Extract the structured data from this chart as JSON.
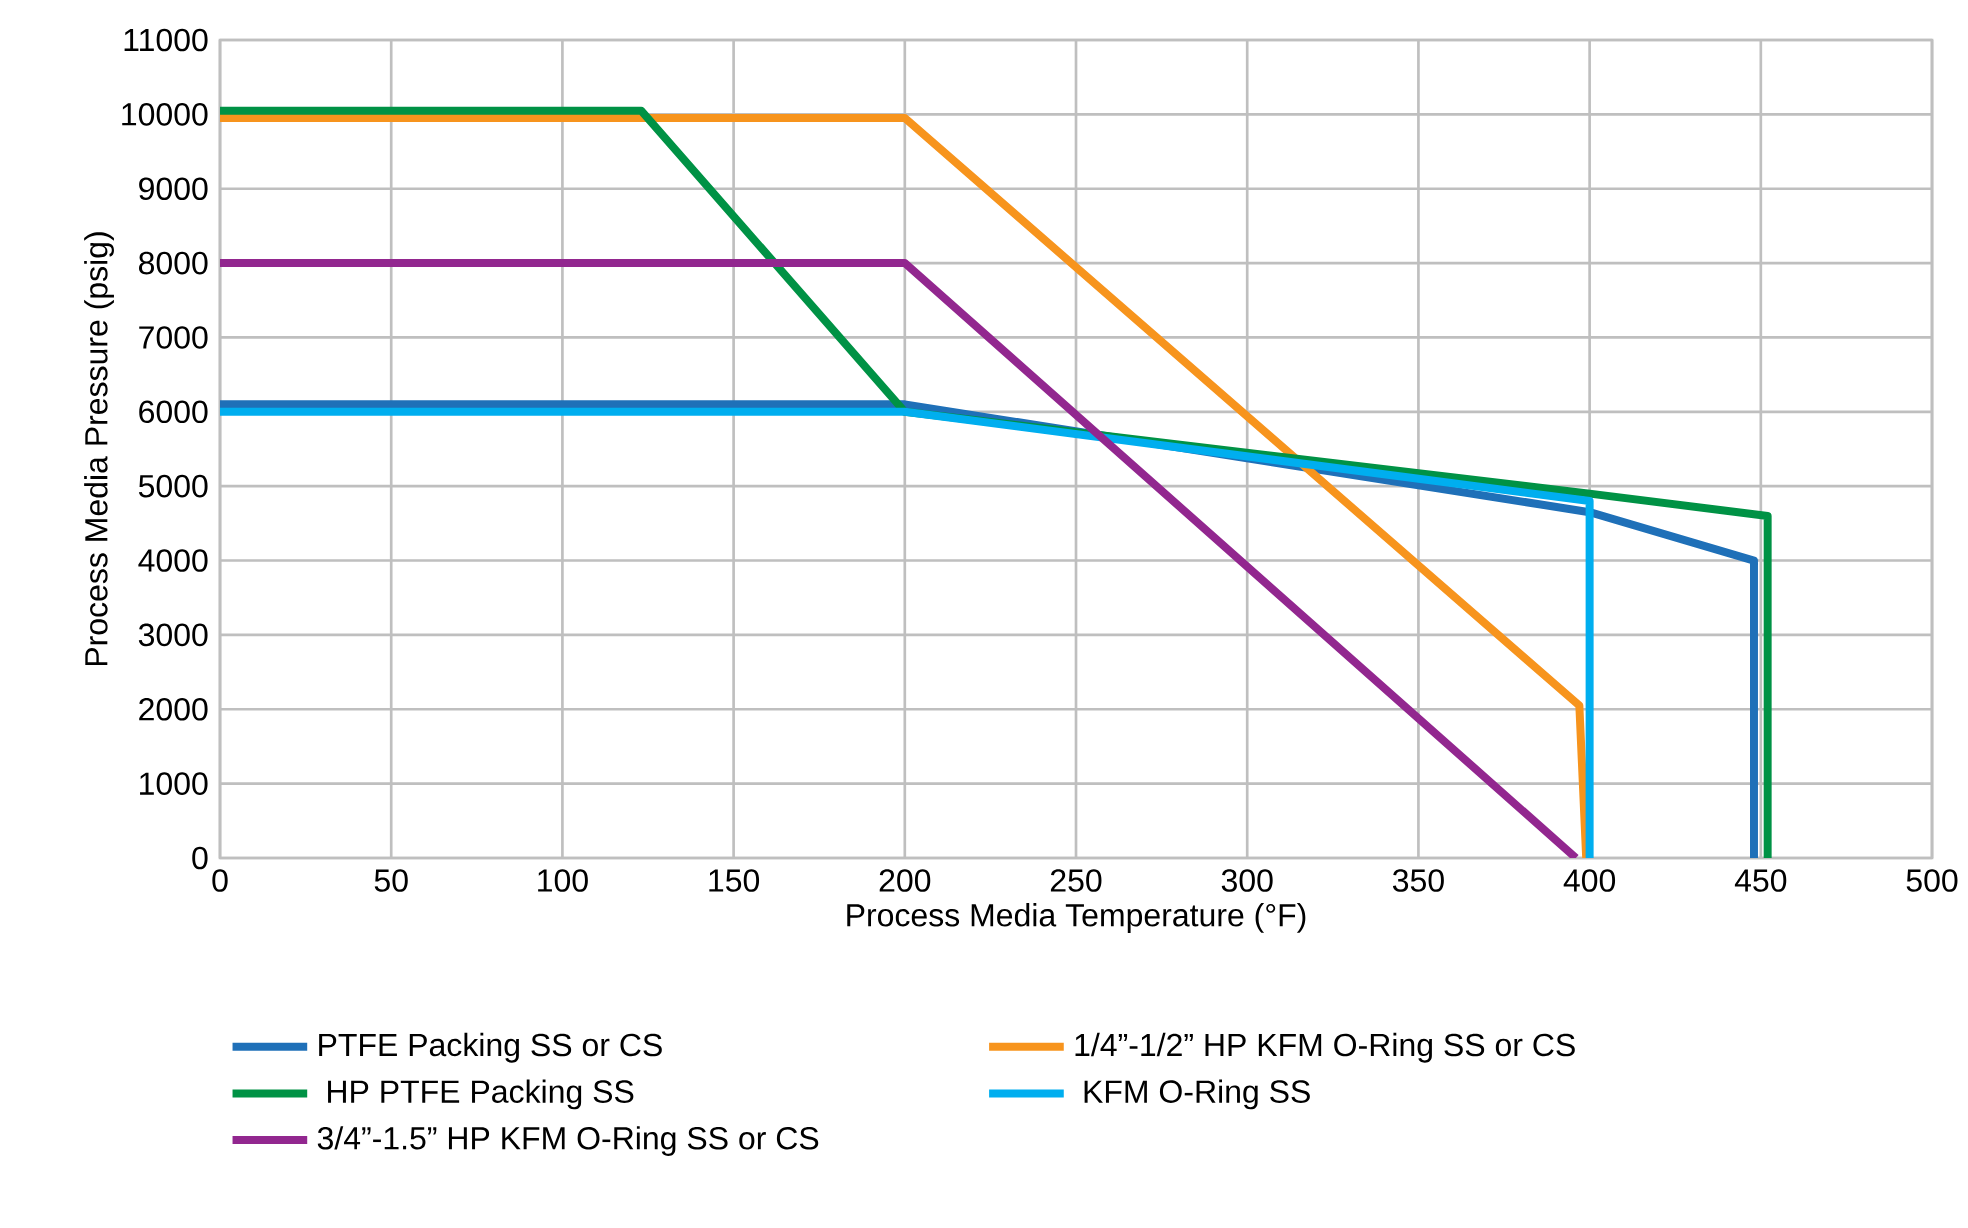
{
  "chart_data": {
    "type": "line",
    "xlabel": "Process Media Temperature (°F)",
    "ylabel": "Process Media Pressure (psig)",
    "xlim": [
      0,
      500
    ],
    "xticks": [
      0,
      50,
      100,
      150,
      200,
      250,
      300,
      350,
      400,
      450,
      500
    ],
    "ylim": [
      0,
      11000
    ],
    "yticks": [
      0,
      1000,
      2000,
      3000,
      4000,
      5000,
      6000,
      7000,
      8000,
      9000,
      10000,
      11000
    ],
    "grid": true,
    "legend": "bottom",
    "marker": "none",
    "line_style": "solid",
    "series": [
      {
        "name": "PTFE Packing SS or CS",
        "color": "#1f70b8",
        "x": [
          0,
          200,
          400,
          448,
          448
        ],
        "values": [
          6100,
          6100,
          4650,
          4000,
          0
        ]
      },
      {
        "name": "1/4”-1/2” HP KFM O-Ring SS or CS",
        "color": "#f7941d",
        "x": [
          0,
          200,
          397,
          399
        ],
        "values": [
          9950,
          9950,
          2050,
          0
        ]
      },
      {
        "name": " HP PTFE Packing SS",
        "color": "#009245",
        "x": [
          0,
          123,
          200,
          400,
          452,
          452
        ],
        "values": [
          10050,
          10050,
          6000,
          4900,
          4600,
          0
        ]
      },
      {
        "name": " KFM O-Ring SS",
        "color": "#00aeef",
        "x": [
          0,
          200,
          400,
          400
        ],
        "values": [
          6000,
          6000,
          4800,
          0
        ]
      },
      {
        "name": "3/4”-1.5” HP KFM O-Ring SS or CS",
        "color": "#92278f",
        "x": [
          0,
          200,
          396
        ],
        "values": [
          8000,
          8000,
          0
        ]
      }
    ]
  }
}
